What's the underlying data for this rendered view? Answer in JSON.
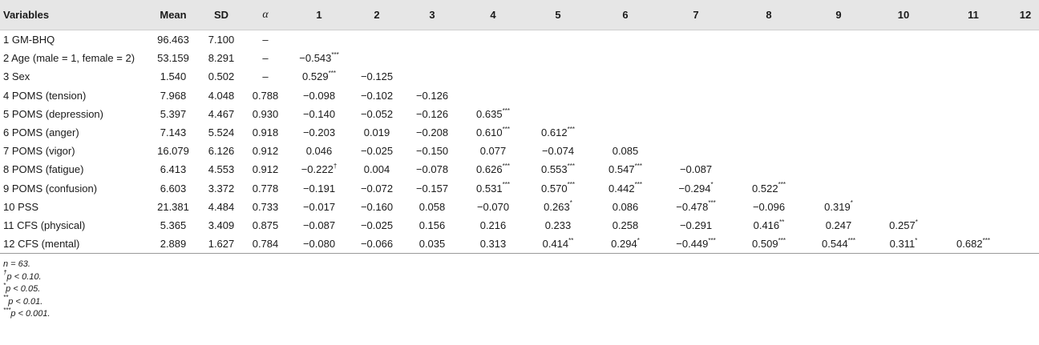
{
  "table": {
    "headers": [
      "Variables",
      "Mean",
      "SD",
      "α",
      "1",
      "2",
      "3",
      "4",
      "5",
      "6",
      "7",
      "8",
      "9",
      "10",
      "11",
      "12"
    ],
    "rows": [
      {
        "label": "1 GM-BHQ",
        "mean": "96.463",
        "sd": "7.100",
        "alpha": "–",
        "cells": [
          [
            "",
            ""
          ],
          [
            "",
            ""
          ],
          [
            "",
            ""
          ],
          [
            "",
            ""
          ],
          [
            "",
            ""
          ],
          [
            "",
            ""
          ],
          [
            "",
            ""
          ],
          [
            "",
            ""
          ],
          [
            "",
            ""
          ],
          [
            "",
            ""
          ],
          [
            "",
            ""
          ],
          [
            "",
            ""
          ]
        ]
      },
      {
        "label": "2 Age (male = 1, female = 2)",
        "mean": "53.159",
        "sd": "8.291",
        "alpha": "–",
        "cells": [
          [
            "−0.543",
            "***"
          ],
          [
            "",
            ""
          ],
          [
            "",
            ""
          ],
          [
            "",
            ""
          ],
          [
            "",
            ""
          ],
          [
            "",
            ""
          ],
          [
            "",
            ""
          ],
          [
            "",
            ""
          ],
          [
            "",
            ""
          ],
          [
            "",
            ""
          ],
          [
            "",
            ""
          ],
          [
            "",
            ""
          ]
        ]
      },
      {
        "label": "3 Sex",
        "mean": "1.540",
        "sd": "0.502",
        "alpha": "–",
        "cells": [
          [
            "0.529",
            "***"
          ],
          [
            "−0.125",
            ""
          ],
          [
            "",
            ""
          ],
          [
            "",
            ""
          ],
          [
            "",
            ""
          ],
          [
            "",
            ""
          ],
          [
            "",
            ""
          ],
          [
            "",
            ""
          ],
          [
            "",
            ""
          ],
          [
            "",
            ""
          ],
          [
            "",
            ""
          ],
          [
            "",
            ""
          ]
        ]
      },
      {
        "label": "4 POMS (tension)",
        "mean": "7.968",
        "sd": "4.048",
        "alpha": "0.788",
        "cells": [
          [
            "−0.098",
            ""
          ],
          [
            "−0.102",
            ""
          ],
          [
            "−0.126",
            ""
          ],
          [
            "",
            ""
          ],
          [
            "",
            ""
          ],
          [
            "",
            ""
          ],
          [
            "",
            ""
          ],
          [
            "",
            ""
          ],
          [
            "",
            ""
          ],
          [
            "",
            ""
          ],
          [
            "",
            ""
          ],
          [
            "",
            ""
          ]
        ]
      },
      {
        "label": "5 POMS (depression)",
        "mean": "5.397",
        "sd": "4.467",
        "alpha": "0.930",
        "cells": [
          [
            "−0.140",
            ""
          ],
          [
            "−0.052",
            ""
          ],
          [
            "−0.126",
            ""
          ],
          [
            "0.635",
            "***"
          ],
          [
            "",
            ""
          ],
          [
            "",
            ""
          ],
          [
            "",
            ""
          ],
          [
            "",
            ""
          ],
          [
            "",
            ""
          ],
          [
            "",
            ""
          ],
          [
            "",
            ""
          ],
          [
            "",
            ""
          ]
        ]
      },
      {
        "label": "6 POMS (anger)",
        "mean": "7.143",
        "sd": "5.524",
        "alpha": "0.918",
        "cells": [
          [
            "−0.203",
            ""
          ],
          [
            "0.019",
            ""
          ],
          [
            "−0.208",
            ""
          ],
          [
            "0.610",
            "***"
          ],
          [
            "0.612",
            "***"
          ],
          [
            "",
            ""
          ],
          [
            "",
            ""
          ],
          [
            "",
            ""
          ],
          [
            "",
            ""
          ],
          [
            "",
            ""
          ],
          [
            "",
            ""
          ],
          [
            "",
            ""
          ]
        ]
      },
      {
        "label": "7 POMS (vigor)",
        "mean": "16.079",
        "sd": "6.126",
        "alpha": "0.912",
        "cells": [
          [
            "0.046",
            ""
          ],
          [
            "−0.025",
            ""
          ],
          [
            "−0.150",
            ""
          ],
          [
            "0.077",
            ""
          ],
          [
            "−0.074",
            ""
          ],
          [
            "0.085",
            ""
          ],
          [
            "",
            ""
          ],
          [
            "",
            ""
          ],
          [
            "",
            ""
          ],
          [
            "",
            ""
          ],
          [
            "",
            ""
          ],
          [
            "",
            ""
          ]
        ]
      },
      {
        "label": "8 POMS (fatigue)",
        "mean": "6.413",
        "sd": "4.553",
        "alpha": "0.912",
        "cells": [
          [
            "−0.222",
            "†"
          ],
          [
            "0.004",
            ""
          ],
          [
            "−0.078",
            ""
          ],
          [
            "0.626",
            "***"
          ],
          [
            "0.553",
            "***"
          ],
          [
            "0.547",
            "***"
          ],
          [
            "−0.087",
            ""
          ],
          [
            "",
            ""
          ],
          [
            "",
            ""
          ],
          [
            "",
            ""
          ],
          [
            "",
            ""
          ],
          [
            "",
            ""
          ]
        ]
      },
      {
        "label": "9 POMS (confusion)",
        "mean": "6.603",
        "sd": "3.372",
        "alpha": "0.778",
        "cells": [
          [
            "−0.191",
            ""
          ],
          [
            "−0.072",
            ""
          ],
          [
            "−0.157",
            ""
          ],
          [
            "0.531",
            "***"
          ],
          [
            "0.570",
            "***"
          ],
          [
            "0.442",
            "***"
          ],
          [
            "−0.294",
            "*"
          ],
          [
            "0.522",
            "***"
          ],
          [
            "",
            ""
          ],
          [
            "",
            ""
          ],
          [
            "",
            ""
          ],
          [
            "",
            ""
          ]
        ]
      },
      {
        "label": "10 PSS",
        "mean": "21.381",
        "sd": "4.484",
        "alpha": "0.733",
        "cells": [
          [
            "−0.017",
            ""
          ],
          [
            "−0.160",
            ""
          ],
          [
            "0.058",
            ""
          ],
          [
            "−0.070",
            ""
          ],
          [
            "0.263",
            "*"
          ],
          [
            "0.086",
            ""
          ],
          [
            "−0.478",
            "***"
          ],
          [
            "−0.096",
            ""
          ],
          [
            "0.319",
            "*"
          ],
          [
            "",
            ""
          ],
          [
            "",
            ""
          ],
          [
            "",
            ""
          ]
        ]
      },
      {
        "label": "11 CFS (physical)",
        "mean": "5.365",
        "sd": "3.409",
        "alpha": "0.875",
        "cells": [
          [
            "−0.087",
            ""
          ],
          [
            "−0.025",
            ""
          ],
          [
            "0.156",
            ""
          ],
          [
            "0.216",
            ""
          ],
          [
            "0.233",
            ""
          ],
          [
            "0.258",
            ""
          ],
          [
            "−0.291",
            ""
          ],
          [
            "0.416",
            "**"
          ],
          [
            "0.247",
            ""
          ],
          [
            "0.257",
            "*"
          ],
          [
            "",
            ""
          ],
          [
            "",
            ""
          ]
        ]
      },
      {
        "label": "12 CFS (mental)",
        "mean": "2.889",
        "sd": "1.627",
        "alpha": "0.784",
        "cells": [
          [
            "−0.080",
            ""
          ],
          [
            "−0.066",
            ""
          ],
          [
            "0.035",
            ""
          ],
          [
            "0.313",
            ""
          ],
          [
            "0.414",
            "**"
          ],
          [
            "0.294",
            "*"
          ],
          [
            "−0.449",
            "***"
          ],
          [
            "0.509",
            "***"
          ],
          [
            "0.544",
            "***"
          ],
          [
            "0.311",
            "*"
          ],
          [
            "0.682",
            "***"
          ],
          [
            "",
            ""
          ]
        ]
      }
    ]
  },
  "notes": [
    {
      "sup": "",
      "text": "n = 63."
    },
    {
      "sup": "†",
      "text": "p < 0.10."
    },
    {
      "sup": "*",
      "text": "p < 0.05."
    },
    {
      "sup": "**",
      "text": "p < 0.01."
    },
    {
      "sup": "***",
      "text": "p < 0.001."
    }
  ]
}
